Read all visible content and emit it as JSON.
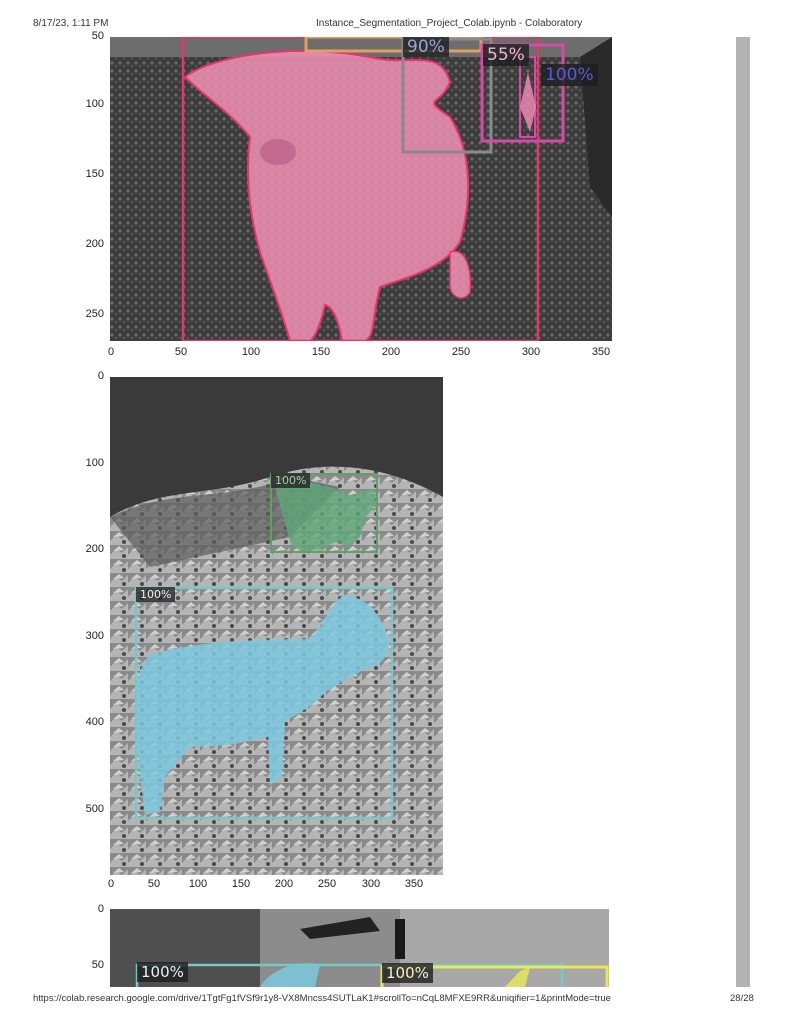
{
  "header": {
    "datetime": "8/17/23, 1:11 PM",
    "title": "Instance_Segmentation_Project_Colab.ipynb - Colaboratory"
  },
  "footer": {
    "url": "https://colab.research.google.com/drive/1TgtFg1fVSf9r1y8-VX8Mncss4SUTLaK1#scrollTo=nCqL8MFXE9RR&uniqifier=1&printMode=true",
    "page": "28/28"
  },
  "figure1": {
    "y_ticks": [
      "50",
      "100",
      "150",
      "200",
      "250"
    ],
    "x_ticks": [
      "0",
      "50",
      "100",
      "150",
      "200",
      "250",
      "300",
      "350"
    ],
    "labels": [
      "90%",
      "55%",
      "100%"
    ],
    "colors": {
      "mask": "#f28fb4",
      "box_main": "#e8336b",
      "box_orange": "#e0a060",
      "box_gray": "#8a8a8a",
      "box_magenta": "#d84aa6",
      "label_blue": "#5a5adc"
    }
  },
  "figure2": {
    "y_ticks": [
      "0",
      "100",
      "200",
      "300",
      "400",
      "500"
    ],
    "x_ticks": [
      "0",
      "50",
      "100",
      "150",
      "200",
      "250",
      "300",
      "350"
    ],
    "labels": [
      "100%",
      "100%"
    ],
    "colors": {
      "mask_blue": "#7cc8e0",
      "box_cyan": "#79c8c8",
      "mask_green": "#5fa878",
      "box_green": "#5f9f6a"
    }
  },
  "figure3": {
    "y_ticks": [
      "0",
      "50"
    ],
    "labels": [
      "100%",
      "100%"
    ],
    "colors": {
      "box_cyan": "#79c8c8",
      "box_yellow": "#e8e85a"
    }
  }
}
